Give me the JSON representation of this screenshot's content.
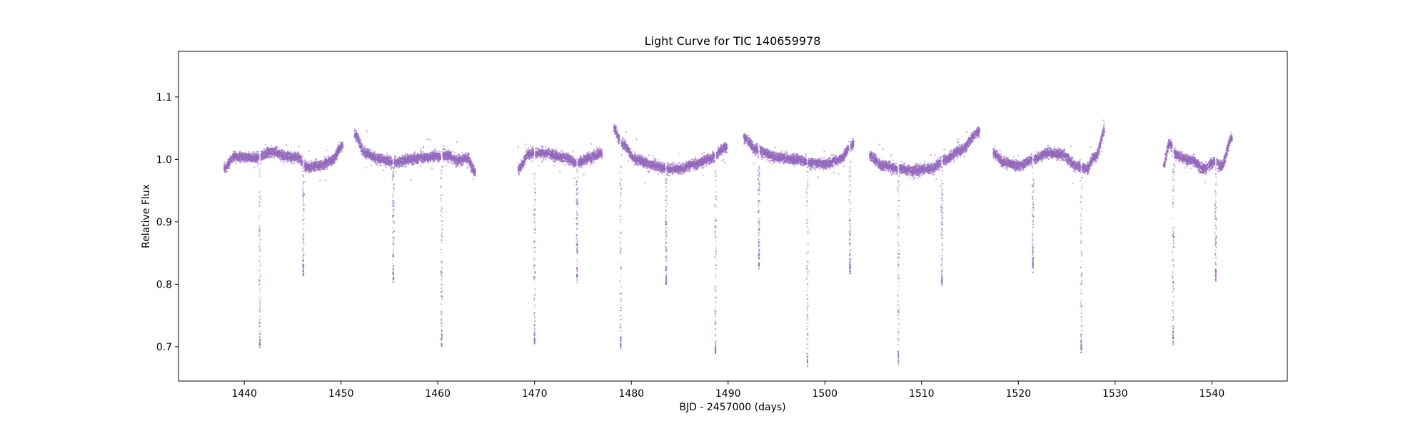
{
  "chart_data": {
    "type": "scatter",
    "title": "Light Curve for TIC 140659978",
    "xlabel": "BJD - 2457000 (days)",
    "ylabel": "Relative Flux",
    "xlim": [
      1433.2,
      1547.8
    ],
    "ylim": [
      0.645,
      1.173
    ],
    "xticks": [
      1440,
      1450,
      1460,
      1470,
      1480,
      1490,
      1500,
      1510,
      1520,
      1530,
      1540
    ],
    "yticks": [
      0.7,
      0.8,
      0.9,
      1.0,
      1.1
    ],
    "tick_labels_x": [
      "1440",
      "1450",
      "1460",
      "1470",
      "1480",
      "1490",
      "1500",
      "1510",
      "1520",
      "1530",
      "1540"
    ],
    "tick_labels_y": [
      "0.7",
      "0.8",
      "0.9",
      "1.0",
      "1.1"
    ],
    "grid": false,
    "legend": "none",
    "marker_color": "#9467bd",
    "baseline_segments": [
      {
        "x0": 1437.9,
        "x1": 1450.2,
        "points": [
          [
            1437.9,
            0.985
          ],
          [
            1439.0,
            1.005
          ],
          [
            1441.0,
            1.002
          ],
          [
            1443.0,
            1.012
          ],
          [
            1444.5,
            1.005
          ],
          [
            1445.5,
            1.003
          ],
          [
            1446.5,
            0.988
          ],
          [
            1448.0,
            0.99
          ],
          [
            1449.0,
            0.998
          ],
          [
            1450.2,
            1.022
          ]
        ]
      },
      {
        "x0": 1451.4,
        "x1": 1463.9,
        "points": [
          [
            1451.4,
            1.04
          ],
          [
            1452.5,
            1.01
          ],
          [
            1454.0,
            1.0
          ],
          [
            1455.5,
            0.995
          ],
          [
            1457.0,
            1.0
          ],
          [
            1458.5,
            1.003
          ],
          [
            1460.0,
            1.005
          ],
          [
            1461.0,
            1.007
          ],
          [
            1462.0,
            0.998
          ],
          [
            1463.0,
            1.002
          ],
          [
            1463.9,
            0.98
          ]
        ]
      },
      {
        "x0": 1468.3,
        "x1": 1477.0,
        "points": [
          [
            1468.3,
            0.985
          ],
          [
            1469.5,
            1.01
          ],
          [
            1471.0,
            1.01
          ],
          [
            1473.0,
            1.003
          ],
          [
            1474.5,
            0.995
          ],
          [
            1475.5,
            1.002
          ],
          [
            1477.0,
            1.01
          ]
        ]
      },
      {
        "x0": 1478.2,
        "x1": 1489.9,
        "points": [
          [
            1478.2,
            1.05
          ],
          [
            1479.0,
            1.025
          ],
          [
            1480.5,
            1.0
          ],
          [
            1482.0,
            0.992
          ],
          [
            1483.5,
            0.985
          ],
          [
            1485.0,
            0.985
          ],
          [
            1486.5,
            0.992
          ],
          [
            1488.0,
            1.0
          ],
          [
            1489.9,
            1.02
          ]
        ]
      },
      {
        "x0": 1491.6,
        "x1": 1503.0,
        "points": [
          [
            1491.6,
            1.035
          ],
          [
            1493.0,
            1.015
          ],
          [
            1495.0,
            1.003
          ],
          [
            1497.0,
            1.0
          ],
          [
            1498.5,
            0.995
          ],
          [
            1500.0,
            0.992
          ],
          [
            1501.5,
            1.0
          ],
          [
            1503.0,
            1.025
          ]
        ]
      },
      {
        "x0": 1504.6,
        "x1": 1516.0,
        "points": [
          [
            1504.6,
            1.005
          ],
          [
            1506.0,
            0.99
          ],
          [
            1507.5,
            0.985
          ],
          [
            1509.0,
            0.982
          ],
          [
            1511.0,
            0.985
          ],
          [
            1512.5,
            1.0
          ],
          [
            1514.0,
            1.015
          ],
          [
            1516.0,
            1.045
          ]
        ]
      },
      {
        "x0": 1517.4,
        "x1": 1528.9,
        "points": [
          [
            1517.4,
            1.01
          ],
          [
            1518.5,
            0.995
          ],
          [
            1520.0,
            0.99
          ],
          [
            1521.5,
            1.0
          ],
          [
            1523.0,
            1.01
          ],
          [
            1524.5,
            1.008
          ],
          [
            1526.0,
            0.99
          ],
          [
            1527.0,
            0.985
          ],
          [
            1528.0,
            1.005
          ],
          [
            1528.9,
            1.045
          ]
        ]
      },
      {
        "x0": 1535.0,
        "x1": 1542.1,
        "points": [
          [
            1535.0,
            0.99
          ],
          [
            1535.6,
            1.025
          ],
          [
            1536.5,
            1.005
          ],
          [
            1538.0,
            0.998
          ],
          [
            1539.0,
            0.985
          ],
          [
            1540.3,
            0.995
          ],
          [
            1541.0,
            0.99
          ],
          [
            1542.1,
            1.035
          ]
        ]
      }
    ],
    "transits": [
      {
        "t": 1441.6,
        "depth_flux": 0.7
      },
      {
        "t": 1446.1,
        "depth_flux": 0.815
      },
      {
        "t": 1455.4,
        "depth_flux": 0.805
      },
      {
        "t": 1460.4,
        "depth_flux": 0.7
      },
      {
        "t": 1470.0,
        "depth_flux": 0.705
      },
      {
        "t": 1474.4,
        "depth_flux": 0.81
      },
      {
        "t": 1478.9,
        "depth_flux": 0.695
      },
      {
        "t": 1483.6,
        "depth_flux": 0.8
      },
      {
        "t": 1488.7,
        "depth_flux": 0.69
      },
      {
        "t": 1493.2,
        "depth_flux": 0.83
      },
      {
        "t": 1498.2,
        "depth_flux": 0.67
      },
      {
        "t": 1502.6,
        "depth_flux": 0.815
      },
      {
        "t": 1507.6,
        "depth_flux": 0.675
      },
      {
        "t": 1512.1,
        "depth_flux": 0.8
      },
      {
        "t": 1521.5,
        "depth_flux": 0.825
      },
      {
        "t": 1526.5,
        "depth_flux": 0.69
      },
      {
        "t": 1536.0,
        "depth_flux": 0.705
      },
      {
        "t": 1540.4,
        "depth_flux": 0.805
      }
    ]
  }
}
